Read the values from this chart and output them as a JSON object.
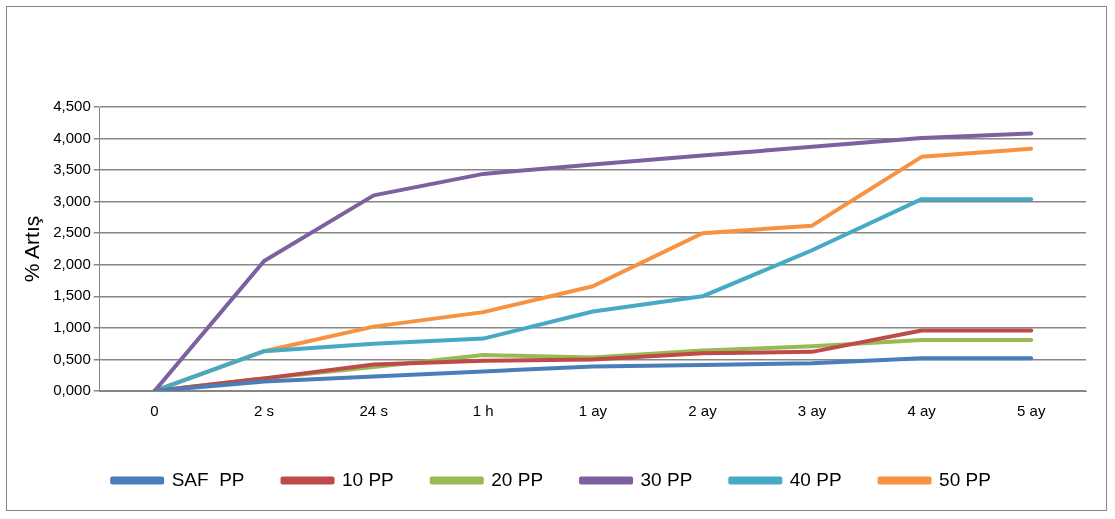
{
  "chart_data": {
    "type": "line",
    "ylabel": "% Artış",
    "categories": [
      "0",
      "2 s",
      "24 s",
      "1 h",
      "1 ay",
      "2 ay",
      "3 ay",
      "4 ay",
      "5 ay"
    ],
    "series": [
      {
        "name": "SAF  PP",
        "color": "#4a7ebb",
        "values": [
          0,
          0.15,
          0.23,
          0.31,
          0.39,
          0.41,
          0.44,
          0.52,
          0.52
        ]
      },
      {
        "name": "10 PP",
        "color": "#be4b48",
        "values": [
          0,
          0.2,
          0.42,
          0.48,
          0.5,
          0.6,
          0.62,
          0.96,
          0.96
        ]
      },
      {
        "name": "20 PP",
        "color": "#98b954",
        "values": [
          0,
          0.2,
          0.38,
          0.57,
          0.53,
          0.64,
          0.71,
          0.81,
          0.81
        ]
      },
      {
        "name": "30 PP",
        "color": "#7d60a0",
        "values": [
          0,
          2.06,
          3.1,
          3.44,
          3.59,
          3.73,
          3.87,
          4.01,
          4.08
        ]
      },
      {
        "name": "40 PP",
        "color": "#46aac5",
        "values": [
          0,
          0.63,
          0.75,
          0.83,
          1.26,
          1.5,
          2.23,
          3.04,
          3.04
        ]
      },
      {
        "name": "50 PP",
        "color": "#f69240",
        "values": [
          0,
          0.63,
          1.02,
          1.25,
          1.66,
          2.5,
          2.62,
          3.71,
          3.84
        ]
      }
    ],
    "ylim": [
      0,
      4.5
    ],
    "yticks": [
      {
        "value": 0,
        "label": "0,000"
      },
      {
        "value": 0.5,
        "label": "0,500"
      },
      {
        "value": 1,
        "label": "1,000"
      },
      {
        "value": 1.5,
        "label": "1,500"
      },
      {
        "value": 2,
        "label": "2,000"
      },
      {
        "value": 2.5,
        "label": "2,500"
      },
      {
        "value": 3,
        "label": "3,000"
      },
      {
        "value": 3.5,
        "label": "3,500"
      },
      {
        "value": 4,
        "label": "4,000"
      },
      {
        "value": 4.5,
        "label": "4,500"
      }
    ],
    "grid": "y",
    "legend": "bottom",
    "marker": "none",
    "line_style": "solid"
  }
}
